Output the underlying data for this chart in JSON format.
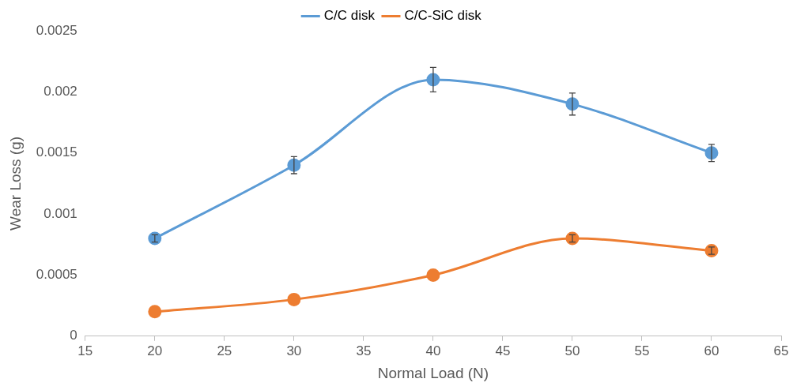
{
  "chart_data": {
    "type": "line",
    "xlabel": "Normal Load (N)",
    "ylabel": "Wear Loss (g)",
    "x": [
      20,
      30,
      40,
      50,
      60
    ],
    "series": [
      {
        "name": "C/C disk",
        "color": "#5b9bd5",
        "values": [
          0.0008,
          0.0014,
          0.0021,
          0.0019,
          0.0015
        ],
        "errors": [
          3e-05,
          7e-05,
          0.0001,
          9e-05,
          7e-05
        ]
      },
      {
        "name": "C/C-SiC disk",
        "color": "#ed7d31",
        "values": [
          0.0002,
          0.0003,
          0.0005,
          0.0008,
          0.0007
        ],
        "errors": [
          null,
          null,
          null,
          3e-05,
          3e-05
        ]
      }
    ],
    "xlim": [
      15,
      65
    ],
    "xticks": [
      15,
      20,
      25,
      30,
      35,
      40,
      45,
      50,
      55,
      60,
      65
    ],
    "ylim": [
      0,
      0.0025
    ],
    "yticks": [
      0,
      0.0005,
      0.001,
      0.0015,
      0.002,
      0.0025
    ],
    "grid": false,
    "legend": "top",
    "marker": "circle",
    "line_style": "solid"
  }
}
